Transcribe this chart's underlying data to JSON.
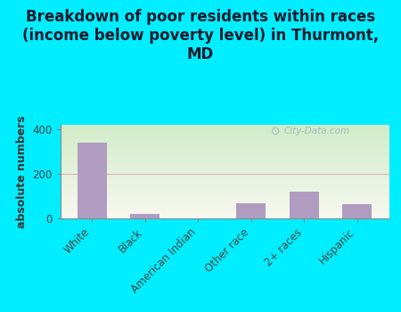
{
  "categories": [
    "White",
    "Black",
    "American Indian",
    "Other race",
    "2+ races",
    "Hispanic"
  ],
  "values": [
    340,
    20,
    0,
    70,
    120,
    65
  ],
  "bar_color": "#b09cc0",
  "title": "Breakdown of poor residents within races\n(income below poverty level) in Thurmont,\nMD",
  "ylabel": "absolute numbers",
  "ylim": [
    0,
    420
  ],
  "yticks": [
    0,
    200,
    400
  ],
  "bg_outer": "#00eeff",
  "bg_plot_topleft": "#c8e8c0",
  "bg_plot_topright": "#e8f5e8",
  "bg_plot_bottom": "#f0f0e0",
  "watermark": "City-Data.com",
  "title_fontsize": 12,
  "ylabel_fontsize": 9,
  "tick_fontsize": 8.5,
  "title_color": "#1a1a2e"
}
